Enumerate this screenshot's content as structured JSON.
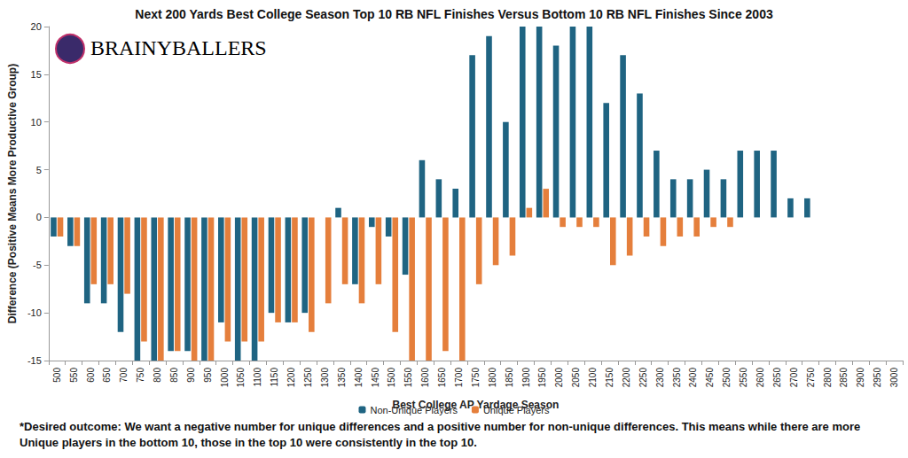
{
  "chart_data": {
    "type": "bar",
    "title": "Next 200 Yards Best College Season Top 10 RB NFL Finishes Versus Bottom 10 RB NFL Finishes Since 2003",
    "x_label": "Best College AP Yardage Season",
    "y_label": "Difference (Positive Means More Productive Group)",
    "footnote": "*Desired outcome: We want a negative number for unique differences and a positive number for non-unique differences. This means while there are more Unique players in the bottom 10, those in the top 10 were consistently in the top 10.",
    "logo_text": [
      "BRAINY",
      "BALLERS"
    ],
    "categories": [
      "500",
      "550",
      "600",
      "650",
      "700",
      "750",
      "800",
      "850",
      "900",
      "950",
      "1000",
      "1050",
      "1100",
      "1150",
      "1200",
      "1250",
      "1300",
      "1350",
      "1400",
      "1450",
      "1500",
      "1550",
      "1600",
      "1650",
      "1700",
      "1750",
      "1800",
      "1850",
      "1900",
      "1950",
      "2000",
      "2050",
      "2100",
      "2150",
      "2200",
      "2250",
      "2300",
      "2350",
      "2400",
      "2450",
      "2500",
      "2550",
      "2600",
      "2650",
      "2700",
      "2750",
      "2800",
      "2850",
      "2900",
      "2950",
      "3000"
    ],
    "series": [
      {
        "name": "Non-Unique Players",
        "color": "#1f6482",
        "values": [
          -2,
          -3,
          -9,
          -9,
          -12,
          -15,
          -15,
          -14,
          -14,
          -15,
          -11,
          -15,
          -15,
          -10,
          -11,
          -10,
          0,
          1,
          -7,
          -1,
          -2,
          -6,
          6,
          4,
          3,
          17,
          19,
          10,
          20,
          20,
          18,
          20,
          20,
          12,
          17,
          13,
          7,
          4,
          4,
          5,
          4,
          7,
          7,
          7,
          2,
          2,
          0,
          0,
          0,
          0,
          0
        ]
      },
      {
        "name": "Unique Players",
        "color": "#e57f3c",
        "values": [
          -2,
          -3,
          -7,
          -7,
          -8,
          -13,
          -15,
          -14,
          -15,
          -15,
          -13,
          -13,
          -13,
          -11,
          -11,
          -12,
          -9,
          -7,
          -9,
          -7,
          -12,
          -15,
          -15,
          -14,
          -15,
          -7,
          -5,
          -4,
          1,
          3,
          -1,
          -1,
          -1,
          -5,
          -4,
          -2,
          -3,
          -2,
          -2,
          -1,
          -1,
          0,
          0,
          0,
          0,
          0,
          0,
          0,
          0,
          0,
          0
        ]
      }
    ],
    "ylim": [
      -15,
      20
    ],
    "yticks": [
      -15,
      -10,
      -5,
      0,
      5,
      10,
      15,
      20
    ],
    "grid": false,
    "legend": "bottom"
  }
}
